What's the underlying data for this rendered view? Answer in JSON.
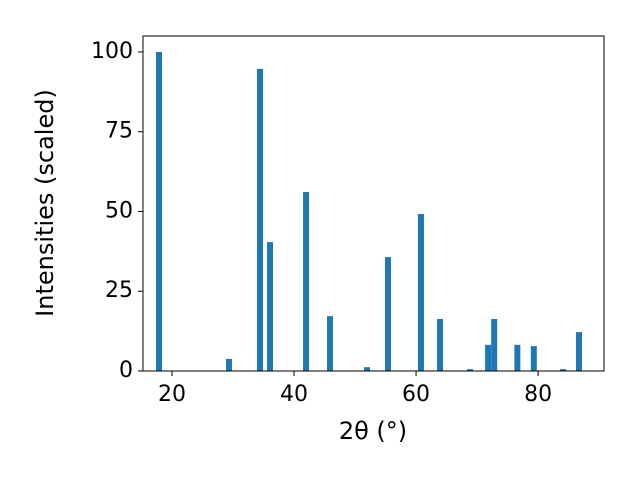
{
  "chart_data": {
    "type": "bar",
    "x_label": "2θ (°)",
    "y_label": "Intensities (scaled)",
    "x": [
      17.87,
      29.34,
      34.43,
      36.07,
      41.97,
      45.9,
      51.97,
      55.4,
      60.8,
      63.93,
      68.85,
      71.8,
      72.8,
      76.6,
      79.3,
      84.1,
      86.7
    ],
    "values": [
      100,
      3.8,
      94.7,
      40.4,
      56.1,
      17.2,
      1.2,
      35.7,
      49.2,
      16.3,
      0.6,
      8.2,
      16.3,
      8.2,
      7.8,
      0.6,
      12.2
    ],
    "color": "#1f77b4",
    "xlim": [
      15.25,
      90.8
    ],
    "ylim": [
      0,
      105
    ],
    "xticks": [
      20,
      40,
      60,
      80
    ],
    "yticks": [
      0,
      25,
      50,
      75,
      100
    ],
    "grid": false
  }
}
